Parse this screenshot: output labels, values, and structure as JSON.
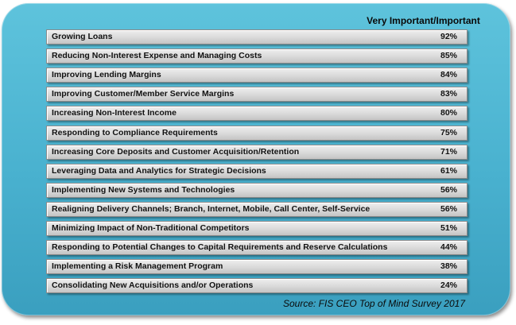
{
  "header": {
    "column_label": "Very Important/Important"
  },
  "chart_data": {
    "type": "table",
    "title": "",
    "columns": [
      "",
      "Very Important/Important"
    ],
    "categories": [
      "Growing Loans",
      "Reducing Non-Interest Expense and Managing Costs",
      "Improving Lending Margins",
      "Improving Customer/Member Service Margins",
      "Increasing Non-Interest Income",
      "Responding to Compliance Requirements",
      "Increasing Core Deposits and Customer Acquisition/Retention",
      "Leveraging Data and Analytics for Strategic Decisions",
      "Implementing New Systems and Technologies",
      "Realigning Delivery Channels; Branch, Internet, Mobile, Call Center, Self-Service",
      "Minimizing Impact of Non-Traditional Competitors",
      "Responding to Potential Changes to Capital Requirements and Reserve Calculations",
      "Implementing a Risk Management Program",
      "Consolidating New Acquisitions and/or Operations"
    ],
    "values": [
      92,
      85,
      84,
      83,
      80,
      75,
      71,
      61,
      56,
      56,
      51,
      44,
      38,
      24
    ],
    "value_labels": [
      "92%",
      "85%",
      "84%",
      "83%",
      "80%",
      "75%",
      "71%",
      "61%",
      "56%",
      "56%",
      "51%",
      "44%",
      "38%",
      "24%"
    ]
  },
  "footer": {
    "source": "Source: FIS CEO Top of Mind Survey 2017"
  },
  "colors": {
    "panel": "#49b1cf",
    "row_fill": "#d9d9d9",
    "text": "#111111"
  }
}
